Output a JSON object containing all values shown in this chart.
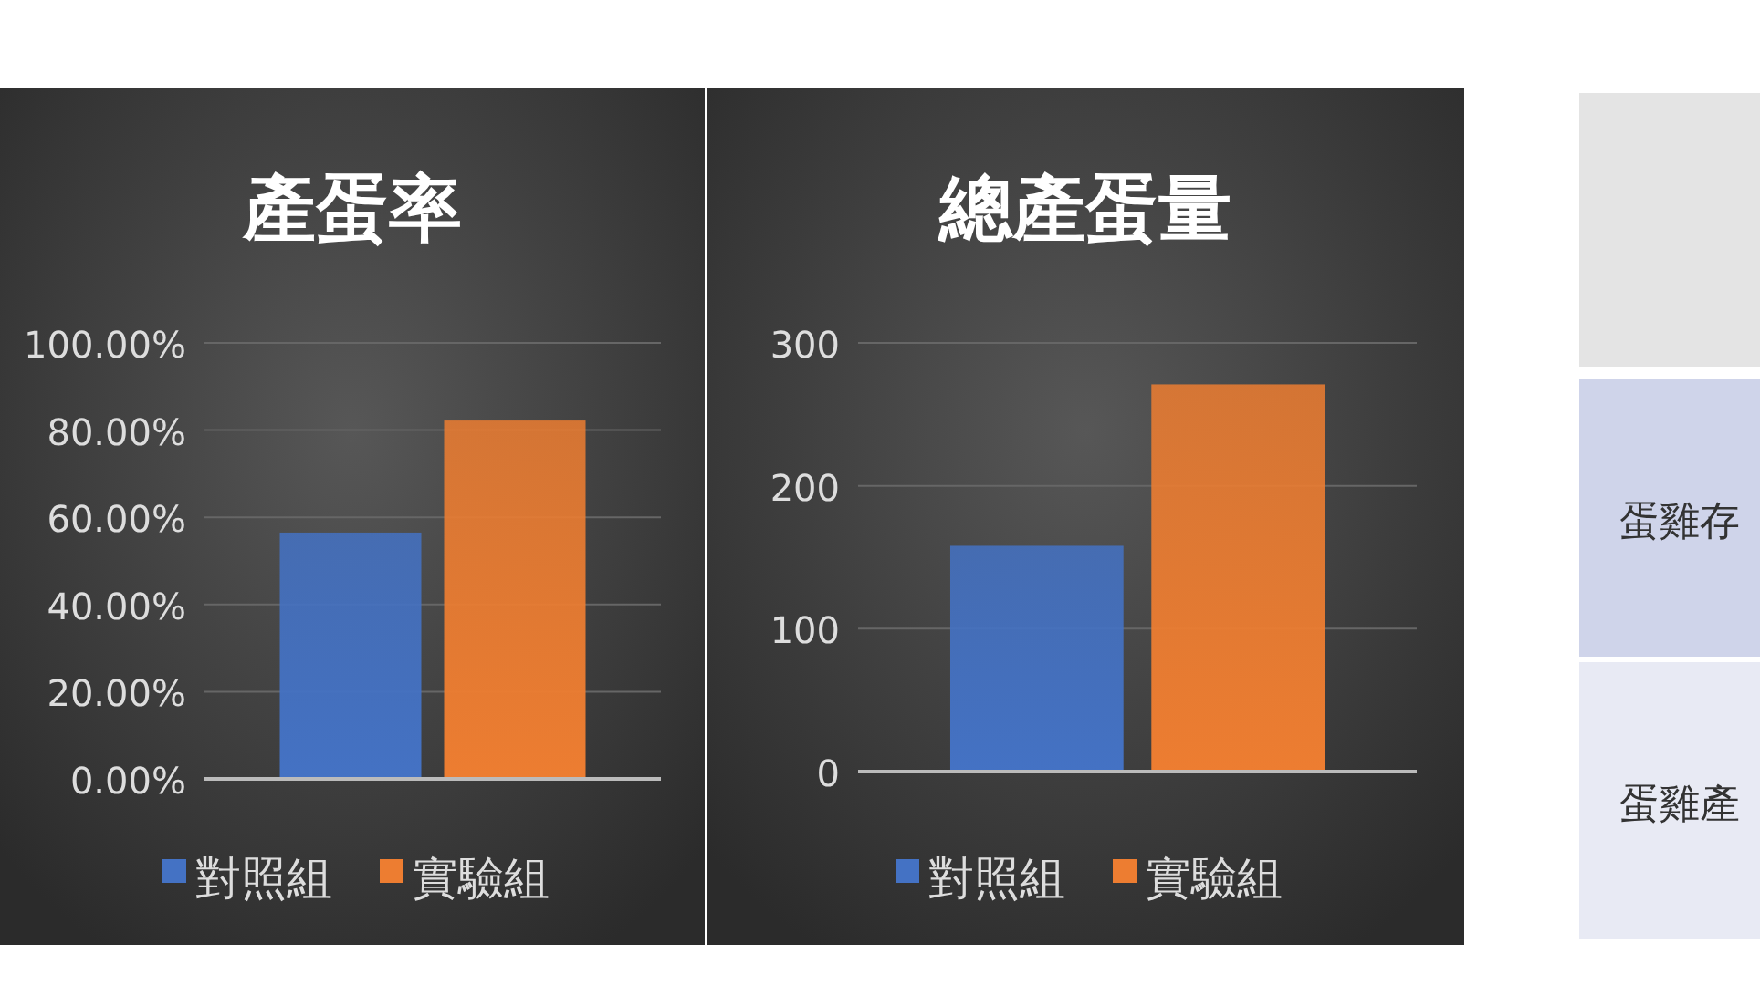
{
  "chart_data": [
    {
      "type": "bar",
      "title": "產蛋率",
      "categories": [
        null
      ],
      "series": [
        {
          "name": "對照組",
          "color": "#4472c4",
          "values": [
            56.5
          ]
        },
        {
          "name": "實驗組",
          "color": "#ed7d31",
          "values": [
            82.2
          ]
        }
      ],
      "ylim": [
        0,
        100
      ],
      "yticks": [
        {
          "value": 0,
          "label": "0.00%"
        },
        {
          "value": 20,
          "label": "20.00%"
        },
        {
          "value": 40,
          "label": "40.00%"
        },
        {
          "value": 60,
          "label": "60.00%"
        },
        {
          "value": 80,
          "label": "80.00%"
        },
        {
          "value": 100,
          "label": "100.00%"
        }
      ],
      "grid": "y",
      "legend": "bottom"
    },
    {
      "type": "bar",
      "title": "總產蛋量",
      "categories": [
        null
      ],
      "series": [
        {
          "name": "對照組",
          "color": "#4472c4",
          "values": [
            158
          ]
        },
        {
          "name": "實驗組",
          "color": "#ed7d31",
          "values": [
            271
          ]
        }
      ],
      "ylim": [
        0,
        300
      ],
      "yticks": [
        0,
        100,
        200,
        300
      ],
      "grid": "y",
      "legend": "bottom"
    },
    {
      "type": "other",
      "annotations": [
        "蛋雞存",
        "蛋雞產"
      ]
    }
  ]
}
